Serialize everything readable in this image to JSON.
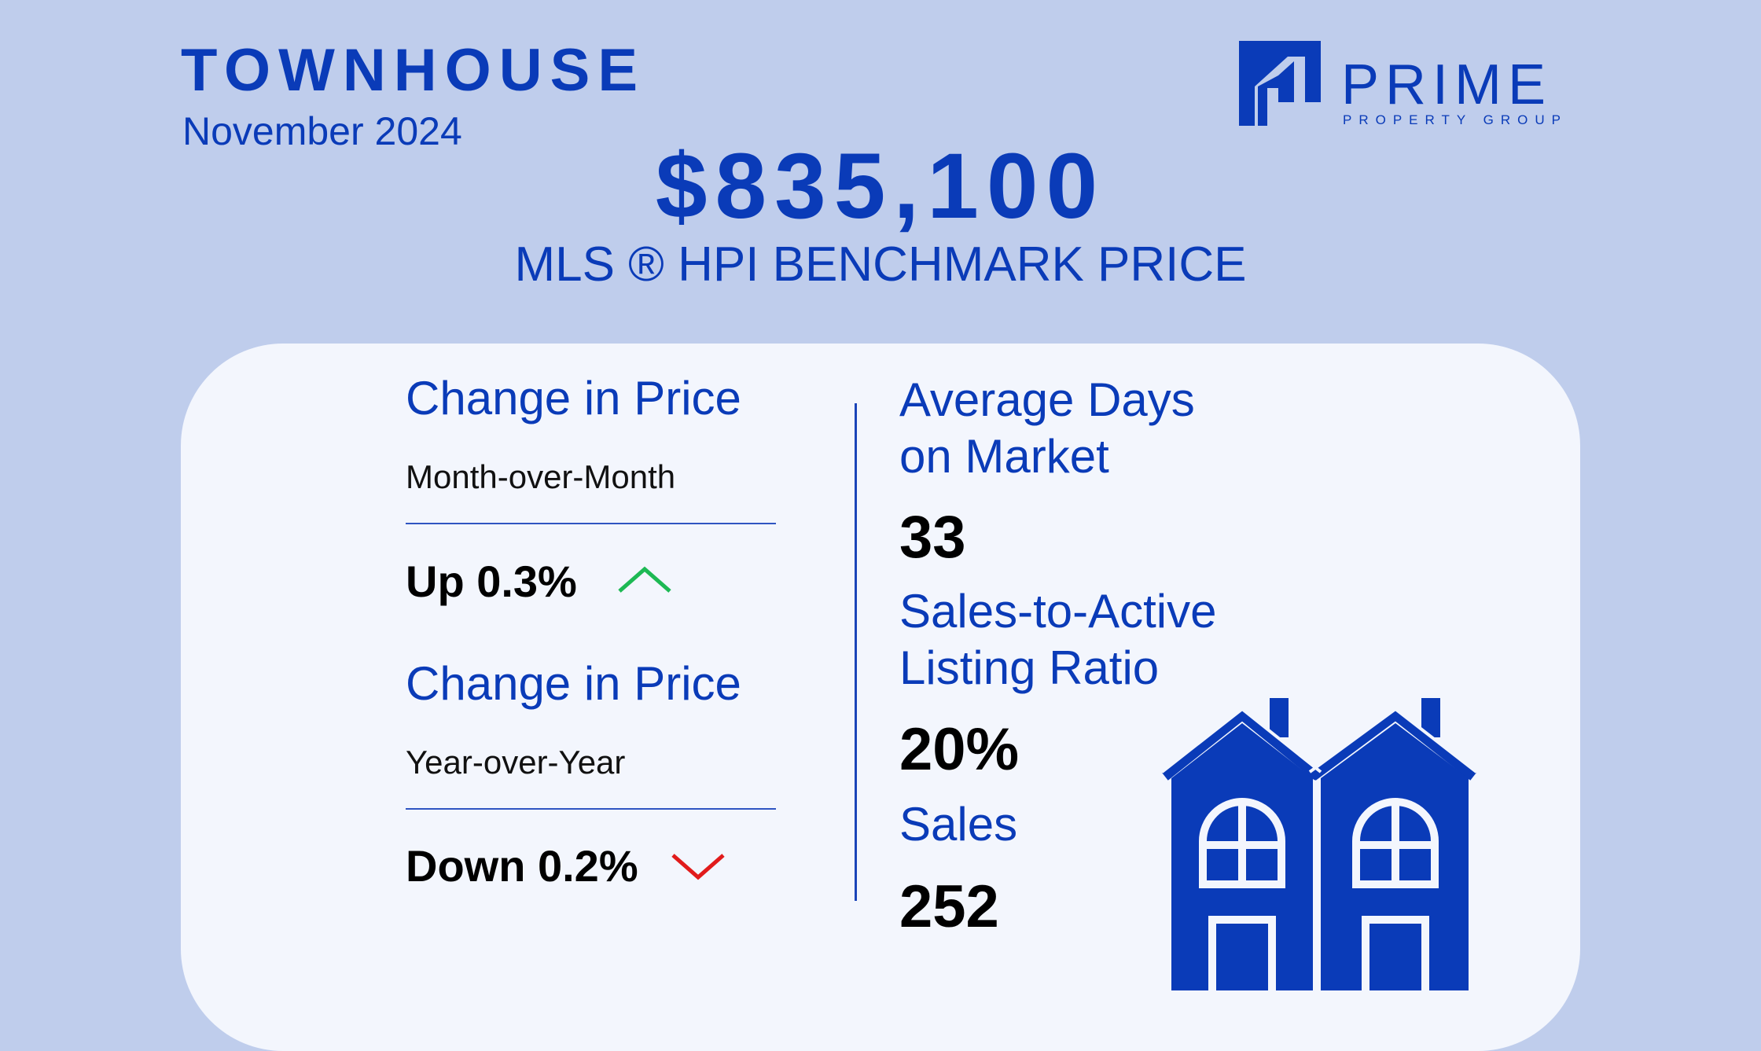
{
  "header": {
    "property_type": "TOWNHOUSE",
    "period": "November 2024"
  },
  "logo": {
    "word": "PRIME",
    "sub": "PROPERTY GROUP",
    "icon": "house-logo-icon"
  },
  "benchmark": {
    "price": "$835,100",
    "label": "MLS ®  HPI BENCHMARK PRICE"
  },
  "left": {
    "mom": {
      "title": "Change in Price",
      "period": "Month-over-Month",
      "value": "Up 0.3%",
      "icon": "chevron-up-icon",
      "icon_color": "#1db954"
    },
    "yoy": {
      "title": "Change in Price",
      "period": "Year-over-Year",
      "value": "Down 0.2%",
      "icon": "chevron-down-icon",
      "icon_color": "#e11b1b"
    }
  },
  "right": {
    "dom": {
      "title_line1": "Average Days",
      "title_line2": "on Market",
      "value": "33"
    },
    "ratio": {
      "title_line1": "Sales-to-Active",
      "title_line2": "Listing Ratio",
      "value": "20%"
    },
    "sales": {
      "title": "Sales",
      "value": "252"
    }
  },
  "illustration": {
    "icon": "townhouse-icon",
    "color": "#0a3bb8"
  },
  "colors": {
    "accent": "#0a3bb8",
    "background": "#bfcdec",
    "card": "#f3f6fd"
  }
}
